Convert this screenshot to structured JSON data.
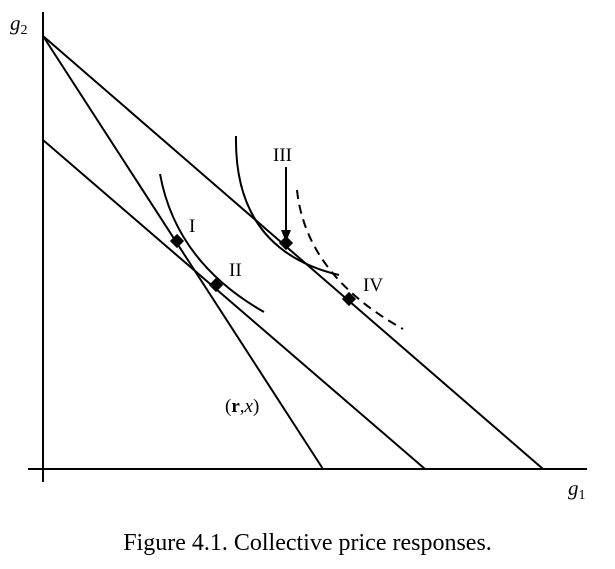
{
  "axes": {
    "x_label": "g",
    "x_sub": "1",
    "y_label": "g",
    "y_sub": "2"
  },
  "points": {
    "I": "I",
    "II": "II",
    "III": "III",
    "IV": "IV"
  },
  "budget_line_label": {
    "open": "(",
    "r": "r",
    "comma": ",",
    "x": "x",
    "close": ")"
  },
  "caption": "Figure 4.1.  Collective price responses."
}
